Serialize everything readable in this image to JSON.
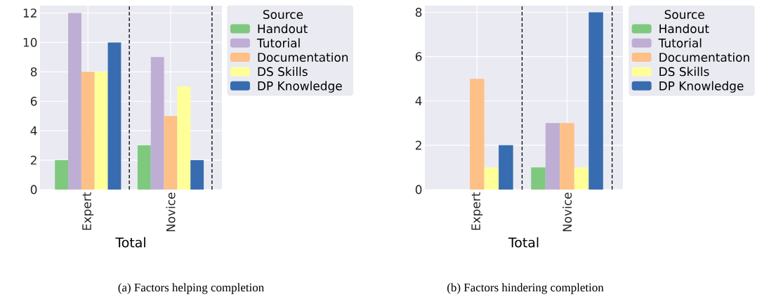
{
  "chart_data": [
    {
      "type": "bar",
      "categories": [
        "Expert",
        "Novice"
      ],
      "xlabel": "Total",
      "legend_title": "Source",
      "legend": "right",
      "grid": true,
      "series": [
        {
          "name": "Handout",
          "color": "#7fc97f",
          "values": [
            2,
            3
          ]
        },
        {
          "name": "Tutorial",
          "color": "#beaed4",
          "values": [
            12,
            9
          ]
        },
        {
          "name": "Documentation",
          "color": "#fdc086",
          "values": [
            8,
            5
          ]
        },
        {
          "name": "DS Skills",
          "color": "#ffff99",
          "values": [
            8,
            7
          ]
        },
        {
          "name": "DP Knowledge",
          "color": "#386cb0",
          "values": [
            10,
            2
          ]
        }
      ],
      "ylim": [
        0,
        12.5
      ],
      "yticks": [
        0,
        2,
        4,
        6,
        8,
        10,
        12
      ],
      "annotations": [
        "(a) Factors helping completion"
      ]
    },
    {
      "type": "bar",
      "categories": [
        "Expert",
        "Novice"
      ],
      "xlabel": "Total",
      "legend_title": "Source",
      "legend": "right",
      "grid": true,
      "series": [
        {
          "name": "Handout",
          "color": "#7fc97f",
          "values": [
            0,
            1
          ]
        },
        {
          "name": "Tutorial",
          "color": "#beaed4",
          "values": [
            0,
            3
          ]
        },
        {
          "name": "Documentation",
          "color": "#fdc086",
          "values": [
            5,
            3
          ]
        },
        {
          "name": "DS Skills",
          "color": "#ffff99",
          "values": [
            1,
            1
          ]
        },
        {
          "name": "DP Knowledge",
          "color": "#386cb0",
          "values": [
            2,
            8
          ]
        }
      ],
      "ylim": [
        0,
        8.3
      ],
      "yticks": [
        0,
        2,
        4,
        6,
        8
      ],
      "annotations": [
        "(b) Factors hindering completion"
      ]
    }
  ]
}
